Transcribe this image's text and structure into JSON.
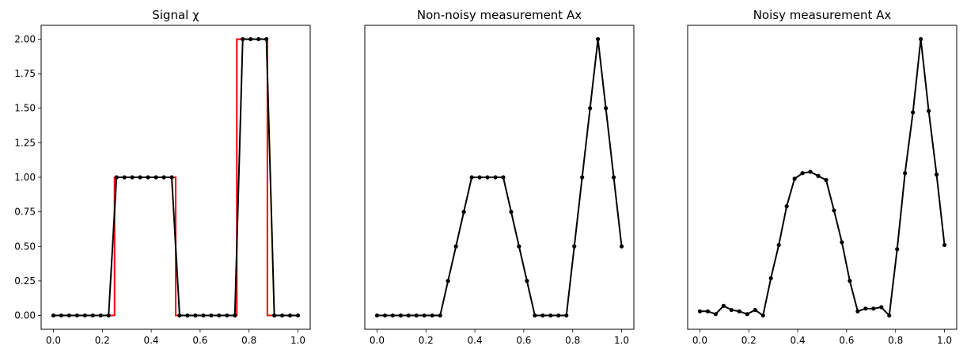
{
  "chart_data": [
    {
      "type": "line",
      "title": "Signal χ",
      "xlabel": "",
      "ylabel": "",
      "xlim": [
        -0.05,
        1.05
      ],
      "ylim": [
        -0.1,
        2.1
      ],
      "x_ticks": [
        "0.0",
        "0.2",
        "0.4",
        "0.6",
        "0.8",
        "1.0"
      ],
      "y_ticks": [
        "0.00",
        "0.25",
        "0.50",
        "0.75",
        "1.00",
        "1.25",
        "1.50",
        "1.75",
        "2.00"
      ],
      "grid": false,
      "series": [
        {
          "color": "#ff0000",
          "markers": false,
          "x": [
            0.0,
            0.25,
            0.25,
            0.5,
            0.5,
            0.75,
            0.75,
            0.875,
            0.875,
            1.0
          ],
          "y": [
            0,
            0,
            1,
            1,
            0,
            0,
            2,
            2,
            0,
            0
          ]
        },
        {
          "color": "#000000",
          "markers": true,
          "x": [
            0.0,
            0.0323,
            0.0645,
            0.0968,
            0.129,
            0.1613,
            0.1935,
            0.2258,
            0.2581,
            0.2903,
            0.3226,
            0.3548,
            0.3871,
            0.4194,
            0.4516,
            0.4839,
            0.5161,
            0.5484,
            0.5806,
            0.6129,
            0.6452,
            0.6774,
            0.7097,
            0.7419,
            0.7742,
            0.8065,
            0.8387,
            0.871,
            0.9032,
            0.9355,
            0.9677,
            1.0
          ],
          "y": [
            0,
            0,
            0,
            0,
            0,
            0,
            0,
            0,
            1,
            1,
            1,
            1,
            1,
            1,
            1,
            1,
            0,
            0,
            0,
            0,
            0,
            0,
            0,
            0,
            2,
            2,
            2,
            2,
            0,
            0,
            0,
            0
          ]
        }
      ]
    },
    {
      "type": "line",
      "title": "Non-noisy measurement Ax",
      "xlabel": "",
      "ylabel": "",
      "xlim": [
        -0.05,
        1.05
      ],
      "ylim": [
        -0.1,
        2.1
      ],
      "x_ticks": [
        "0.0",
        "0.2",
        "0.4",
        "0.6",
        "0.8",
        "1.0"
      ],
      "y_ticks": [],
      "grid": false,
      "series": [
        {
          "color": "#000000",
          "markers": true,
          "x": [
            0.0,
            0.0323,
            0.0645,
            0.0968,
            0.129,
            0.1613,
            0.1935,
            0.2258,
            0.2581,
            0.2903,
            0.3226,
            0.3548,
            0.3871,
            0.4194,
            0.4516,
            0.4839,
            0.5161,
            0.5484,
            0.5806,
            0.6129,
            0.6452,
            0.6774,
            0.7097,
            0.7419,
            0.7742,
            0.8065,
            0.8387,
            0.871,
            0.9032,
            0.9355,
            0.9677,
            1.0
          ],
          "y": [
            0,
            0,
            0,
            0,
            0,
            0,
            0,
            0,
            0,
            0.25,
            0.5,
            0.75,
            1,
            1,
            1,
            1,
            1,
            0.75,
            0.5,
            0.25,
            0,
            0,
            0,
            0,
            0,
            0.5,
            1,
            1.5,
            2,
            1.5,
            1,
            0.5
          ]
        }
      ]
    },
    {
      "type": "line",
      "title": "Noisy measurement Ax",
      "xlabel": "",
      "ylabel": "",
      "xlim": [
        -0.05,
        1.05
      ],
      "ylim": [
        -0.1,
        2.1
      ],
      "x_ticks": [
        "0.0",
        "0.2",
        "0.4",
        "0.6",
        "0.8",
        "1.0"
      ],
      "y_ticks": [],
      "grid": false,
      "series": [
        {
          "color": "#000000",
          "markers": true,
          "x": [
            0.0,
            0.0323,
            0.0645,
            0.0968,
            0.129,
            0.1613,
            0.1935,
            0.2258,
            0.2581,
            0.2903,
            0.3226,
            0.3548,
            0.3871,
            0.4194,
            0.4516,
            0.4839,
            0.5161,
            0.5484,
            0.5806,
            0.6129,
            0.6452,
            0.6774,
            0.7097,
            0.7419,
            0.7742,
            0.8065,
            0.8387,
            0.871,
            0.9032,
            0.9355,
            0.9677,
            1.0
          ],
          "y": [
            0.03,
            0.03,
            0.01,
            0.07,
            0.04,
            0.03,
            0.01,
            0.04,
            0.0,
            0.27,
            0.51,
            0.79,
            0.99,
            1.03,
            1.04,
            1.01,
            0.98,
            0.76,
            0.53,
            0.25,
            0.03,
            0.05,
            0.05,
            0.06,
            0.0,
            0.48,
            1.03,
            1.47,
            2.0,
            1.48,
            1.02,
            0.51
          ]
        }
      ]
    }
  ]
}
